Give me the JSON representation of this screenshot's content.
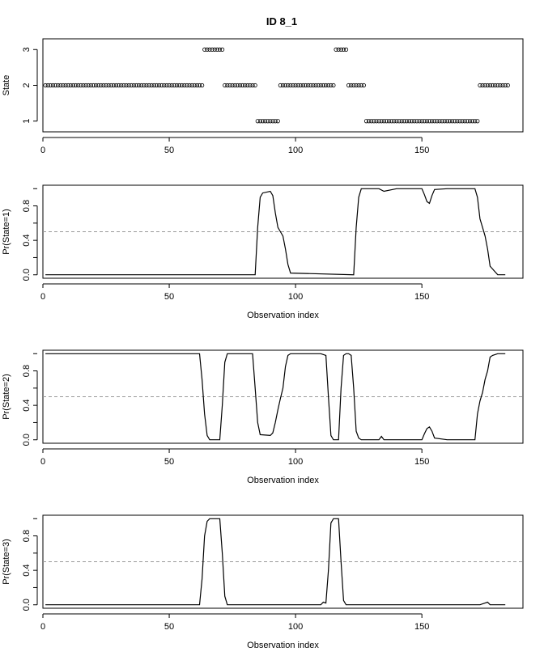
{
  "title": "ID 8_1",
  "chart_data": [
    {
      "type": "scatter",
      "name": "state-sequence",
      "xlabel": "",
      "ylabel": "State",
      "xlim": [
        0,
        190
      ],
      "ylim": [
        0.7,
        3.3
      ],
      "x_ticks": [
        0,
        50,
        100,
        150
      ],
      "y_ticks": [
        1,
        2,
        3
      ],
      "marker": "open-circle",
      "x_start": 1,
      "states": [
        2,
        2,
        2,
        2,
        2,
        2,
        2,
        2,
        2,
        2,
        2,
        2,
        2,
        2,
        2,
        2,
        2,
        2,
        2,
        2,
        2,
        2,
        2,
        2,
        2,
        2,
        2,
        2,
        2,
        2,
        2,
        2,
        2,
        2,
        2,
        2,
        2,
        2,
        2,
        2,
        2,
        2,
        2,
        2,
        2,
        2,
        2,
        2,
        2,
        2,
        2,
        2,
        2,
        2,
        2,
        2,
        2,
        2,
        2,
        2,
        2,
        2,
        2,
        3,
        3,
        3,
        3,
        3,
        3,
        3,
        3,
        2,
        2,
        2,
        2,
        2,
        2,
        2,
        2,
        2,
        2,
        2,
        2,
        2,
        1,
        1,
        1,
        1,
        1,
        1,
        1,
        1,
        1,
        2,
        2,
        2,
        2,
        2,
        2,
        2,
        2,
        2,
        2,
        2,
        2,
        2,
        2,
        2,
        2,
        2,
        2,
        2,
        2,
        2,
        2,
        3,
        3,
        3,
        3,
        3,
        2,
        2,
        2,
        2,
        2,
        2,
        2,
        1,
        1,
        1,
        1,
        1,
        1,
        1,
        1,
        1,
        1,
        1,
        1,
        1,
        1,
        1,
        1,
        1,
        1,
        1,
        1,
        1,
        1,
        1,
        1,
        1,
        1,
        1,
        1,
        1,
        1,
        1,
        1,
        1,
        1,
        1,
        1,
        1,
        1,
        1,
        1,
        1,
        1,
        1,
        1,
        1,
        2,
        2,
        2,
        2,
        2,
        2,
        2,
        2,
        2,
        2,
        2,
        2
      ]
    },
    {
      "type": "line",
      "name": "pr-state-1",
      "xlabel": "Observation index",
      "ylabel": "Pr(State=1)",
      "xlim": [
        0,
        190
      ],
      "ylim": [
        -0.04,
        1.04
      ],
      "x_ticks": [
        0,
        50,
        100,
        150
      ],
      "y_ticks": [
        0.0,
        0.4,
        0.8
      ],
      "reference_line": 0.5,
      "series": [
        {
          "x": [
            1,
            20,
            50,
            84,
            85,
            86,
            87,
            90,
            91,
            92,
            93,
            94,
            95,
            96,
            97,
            98,
            123,
            124,
            125,
            126,
            130,
            133,
            135,
            140,
            150,
            151,
            152,
            153,
            154,
            155,
            160,
            171,
            172,
            173,
            174,
            175,
            176,
            177,
            180,
            183
          ],
          "y": [
            0.0,
            0.0,
            0.0,
            0.0,
            0.55,
            0.9,
            0.95,
            0.97,
            0.92,
            0.72,
            0.55,
            0.5,
            0.45,
            0.3,
            0.12,
            0.02,
            0.0,
            0.55,
            0.9,
            1.0,
            1.0,
            1.0,
            0.97,
            1.0,
            1.0,
            0.93,
            0.85,
            0.83,
            0.92,
            0.99,
            1.0,
            1.0,
            0.9,
            0.65,
            0.55,
            0.45,
            0.3,
            0.1,
            0.0,
            0.0
          ]
        }
      ]
    },
    {
      "type": "line",
      "name": "pr-state-2",
      "xlabel": "Observation index",
      "ylabel": "Pr(State=2)",
      "xlim": [
        0,
        190
      ],
      "ylim": [
        -0.04,
        1.04
      ],
      "x_ticks": [
        0,
        50,
        100,
        150
      ],
      "y_ticks": [
        0.0,
        0.4,
        0.8
      ],
      "reference_line": 0.5,
      "series": [
        {
          "x": [
            1,
            10,
            20,
            30,
            40,
            50,
            62,
            63,
            64,
            65,
            66,
            70,
            71,
            72,
            73,
            74,
            80,
            83,
            84,
            85,
            86,
            90,
            91,
            92,
            93,
            94,
            95,
            96,
            97,
            98,
            100,
            110,
            112,
            113,
            114,
            115,
            117,
            118,
            119,
            120,
            121,
            122,
            123,
            124,
            125,
            126,
            130,
            133,
            134,
            135,
            140,
            150,
            151,
            152,
            153,
            154,
            155,
            160,
            170,
            171,
            172,
            173,
            174,
            175,
            176,
            177,
            178,
            180,
            183
          ],
          "y": [
            1.0,
            1.0,
            1.0,
            1.0,
            1.0,
            1.0,
            1.0,
            0.7,
            0.3,
            0.05,
            0.0,
            0.0,
            0.4,
            0.9,
            1.0,
            1.0,
            1.0,
            1.0,
            0.6,
            0.2,
            0.06,
            0.05,
            0.08,
            0.2,
            0.35,
            0.48,
            0.6,
            0.85,
            0.98,
            1.0,
            1.0,
            1.0,
            0.98,
            0.5,
            0.05,
            0.0,
            0.0,
            0.6,
            0.98,
            1.0,
            1.0,
            0.98,
            0.6,
            0.1,
            0.02,
            0.0,
            0.0,
            0.0,
            0.04,
            0.0,
            0.0,
            0.0,
            0.07,
            0.13,
            0.15,
            0.1,
            0.02,
            0.0,
            0.0,
            0.0,
            0.3,
            0.45,
            0.55,
            0.7,
            0.8,
            0.96,
            0.98,
            1.0,
            1.0
          ]
        }
      ]
    },
    {
      "type": "line",
      "name": "pr-state-3",
      "xlabel": "Observation index",
      "ylabel": "Pr(State=3)",
      "xlim": [
        0,
        190
      ],
      "ylim": [
        -0.04,
        1.04
      ],
      "x_ticks": [
        0,
        50,
        100,
        150
      ],
      "y_ticks": [
        0.0,
        0.4,
        0.8
      ],
      "reference_line": 0.5,
      "series": [
        {
          "x": [
            1,
            50,
            62,
            63,
            64,
            65,
            66,
            70,
            71,
            72,
            73,
            80,
            110,
            111,
            112,
            113,
            114,
            115,
            117,
            118,
            119,
            120,
            173,
            175,
            176,
            177,
            183
          ],
          "y": [
            0.0,
            0.0,
            0.0,
            0.3,
            0.8,
            0.97,
            1.0,
            1.0,
            0.6,
            0.1,
            0.0,
            0.0,
            0.0,
            0.03,
            0.02,
            0.4,
            0.95,
            1.0,
            1.0,
            0.5,
            0.05,
            0.0,
            0.0,
            0.02,
            0.03,
            0.0,
            0.0
          ]
        }
      ]
    }
  ]
}
